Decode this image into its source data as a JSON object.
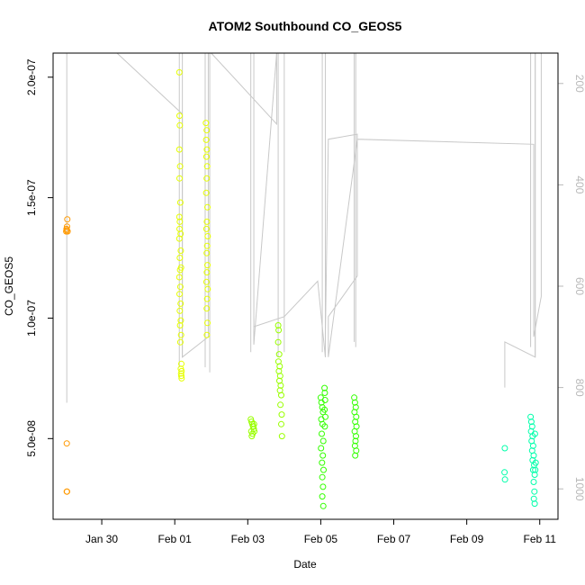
{
  "chart_data": {
    "type": "scatter",
    "title": "ATOM2 Southbound CO_GEOS5",
    "xlabel": "Date",
    "ylabel": "CO_GEOS5",
    "xlim": [
      "2017-01-28T16:00",
      "2017-02-11T12:00"
    ],
    "ylim": [
      1.65e-08,
      2.1e-07
    ],
    "y2lim": [
      1060,
      140
    ],
    "grid": false,
    "legend": "none",
    "x_ticks": [
      {
        "value": "2017-01-30",
        "label": "Jan 30"
      },
      {
        "value": "2017-02-01",
        "label": "Feb 01"
      },
      {
        "value": "2017-02-03",
        "label": "Feb 03"
      },
      {
        "value": "2017-02-05",
        "label": "Feb 05"
      },
      {
        "value": "2017-02-07",
        "label": "Feb 07"
      },
      {
        "value": "2017-02-09",
        "label": "Feb 09"
      },
      {
        "value": "2017-02-11",
        "label": "Feb 11"
      }
    ],
    "y_ticks": [
      {
        "value": 5e-08,
        "label": "5.0e-08"
      },
      {
        "value": 1e-07,
        "label": "1.0e-07"
      },
      {
        "value": 1.5e-07,
        "label": "1.5e-07"
      },
      {
        "value": 2e-07,
        "label": "2.0e-07"
      }
    ],
    "y2_ticks": [
      {
        "value": 200,
        "label": "200"
      },
      {
        "value": 400,
        "label": "400"
      },
      {
        "value": 600,
        "label": "600"
      },
      {
        "value": 800,
        "label": "800"
      },
      {
        "value": 1000,
        "label": "1000"
      }
    ],
    "pressure_color": "#c8c8c8",
    "pressure_profiles": [
      {
        "x": "2017-01-29T01:00",
        "p_top": 140,
        "p_bottom": 830
      },
      {
        "x": "2017-02-01T03:00",
        "p_top": 140,
        "p_bottom": 760
      },
      {
        "x": "2017-02-01T05:00",
        "p_top": 140,
        "p_bottom": 740
      },
      {
        "x": "2017-02-01T20:00",
        "p_top": 140,
        "p_bottom": 760
      },
      {
        "x": "2017-02-01T23:00",
        "p_top": 140,
        "p_bottom": 770
      },
      {
        "x": "2017-02-03T02:00",
        "p_top": 140,
        "p_bottom": 730
      },
      {
        "x": "2017-02-03T04:00",
        "p_top": 140,
        "p_bottom": 715
      },
      {
        "x": "2017-02-03T20:00",
        "p_top": 140,
        "p_bottom": 740
      },
      {
        "x": "2017-02-04T00:00",
        "p_top": 140,
        "p_bottom": 730
      },
      {
        "x": "2017-02-05T01:00",
        "p_top": 140,
        "p_bottom": 730
      },
      {
        "x": "2017-02-05T03:00",
        "p_top": 140,
        "p_bottom": 740
      },
      {
        "x": "2017-02-05T22:00",
        "p_top": 140,
        "p_bottom": 710
      },
      {
        "x": "2017-02-05T23:00",
        "p_top": 140,
        "p_bottom": 720
      },
      {
        "x": "2017-02-10T18:00",
        "p_top": 140,
        "p_bottom": 720
      },
      {
        "x": "2017-02-10T21:00",
        "p_top": 140,
        "p_bottom": 740
      }
    ],
    "transit_path": [
      [
        "2017-01-30T10:00",
        140
      ],
      [
        "2017-02-01T05:00",
        260
      ],
      [
        "2017-02-01T05:00",
        740
      ],
      [
        "2017-02-01T22:00",
        700
      ],
      [
        "2017-02-01T22:00",
        140
      ],
      [
        "2017-02-02T00:00",
        140
      ],
      [
        "2017-02-03T19:00",
        280
      ],
      [
        "2017-02-03T19:00",
        140
      ],
      [
        "2017-02-03T04:00",
        715
      ],
      [
        "2017-02-03T04:00",
        680
      ],
      [
        "2017-02-04T00:00",
        660
      ],
      [
        "2017-02-04T22:00",
        590
      ],
      [
        "2017-02-05T03:00",
        740
      ],
      [
        "2017-02-05T03:00",
        700
      ],
      [
        "2017-02-05T05:00",
        310
      ],
      [
        "2017-02-06T00:00",
        300
      ],
      [
        "2017-02-06T00:00",
        580
      ],
      [
        "2017-02-05T05:00",
        660
      ],
      [
        "2017-02-05T05:00",
        740
      ],
      [
        "2017-02-06T00:00",
        310
      ],
      [
        "2017-02-10T20:00",
        320
      ],
      [
        "2017-02-10T20:00",
        700
      ],
      [
        "2017-02-11T01:00",
        620
      ],
      [
        "2017-02-11T01:00",
        140
      ],
      [
        "2017-02-10T21:00",
        140
      ],
      [
        "2017-02-10T21:00",
        740
      ],
      [
        "2017-02-10T01:00",
        710
      ],
      [
        "2017-02-10T01:00",
        800
      ]
    ],
    "series": [
      {
        "color": "#ff9900",
        "points": [
          [
            "2017-01-29T00:40",
            1.36e-07
          ],
          [
            "2017-01-29T00:50",
            1.37e-07
          ],
          [
            "2017-01-29T01:00",
            1.365e-07
          ],
          [
            "2017-01-29T01:10",
            1.38e-07
          ],
          [
            "2017-01-29T01:20",
            1.41e-07
          ],
          [
            "2017-01-29T01:30",
            1.36e-07
          ],
          [
            "2017-01-29T01:00",
            4.8e-08
          ],
          [
            "2017-01-29T01:00",
            2.8e-08
          ],
          [
            "2017-01-29T01:10",
            2.8e-08
          ]
        ]
      },
      {
        "color": "#e6ff00",
        "points": [
          [
            "2017-02-01T03:00",
            2.02e-07
          ],
          [
            "2017-02-01T03:10",
            1.84e-07
          ],
          [
            "2017-02-01T03:20",
            1.8e-07
          ],
          [
            "2017-02-01T03:00",
            1.7e-07
          ],
          [
            "2017-02-01T03:30",
            1.63e-07
          ],
          [
            "2017-02-01T03:10",
            1.58e-07
          ],
          [
            "2017-02-01T03:40",
            1.48e-07
          ],
          [
            "2017-02-01T03:00",
            1.42e-07
          ],
          [
            "2017-02-01T03:20",
            1.4e-07
          ],
          [
            "2017-02-01T03:10",
            1.37e-07
          ],
          [
            "2017-02-01T03:50",
            1.35e-07
          ],
          [
            "2017-02-01T03:00",
            1.33e-07
          ],
          [
            "2017-02-01T04:00",
            1.28e-07
          ],
          [
            "2017-02-01T03:20",
            1.25e-07
          ],
          [
            "2017-02-01T04:10",
            1.21e-07
          ],
          [
            "2017-02-01T03:30",
            1.2e-07
          ],
          [
            "2017-02-01T03:00",
            1.17e-07
          ],
          [
            "2017-02-01T03:40",
            1.13e-07
          ],
          [
            "2017-02-01T03:10",
            1.1e-07
          ],
          [
            "2017-02-01T03:50",
            1.06e-07
          ],
          [
            "2017-02-01T03:20",
            1.03e-07
          ],
          [
            "2017-02-01T04:00",
            9.9e-08
          ],
          [
            "2017-02-01T03:30",
            9.7e-08
          ],
          [
            "2017-02-01T04:10",
            9.3e-08
          ],
          [
            "2017-02-01T03:40",
            9e-08
          ],
          [
            "2017-02-01T04:20",
            8.1e-08
          ],
          [
            "2017-02-01T04:00",
            7.9e-08
          ],
          [
            "2017-02-01T04:30",
            7.8e-08
          ],
          [
            "2017-02-01T04:10",
            7.7e-08
          ],
          [
            "2017-02-01T04:20",
            7.6e-08
          ],
          [
            "2017-02-01T04:30",
            7.5e-08
          ],
          [
            "2017-02-01T20:30",
            1.81e-07
          ],
          [
            "2017-02-01T21:00",
            1.78e-07
          ],
          [
            "2017-02-01T20:40",
            1.74e-07
          ],
          [
            "2017-02-01T21:10",
            1.7e-07
          ],
          [
            "2017-02-01T20:50",
            1.67e-07
          ],
          [
            "2017-02-01T21:20",
            1.63e-07
          ],
          [
            "2017-02-01T21:00",
            1.58e-07
          ],
          [
            "2017-02-01T20:40",
            1.52e-07
          ],
          [
            "2017-02-01T21:30",
            1.46e-07
          ],
          [
            "2017-02-01T21:10",
            1.4e-07
          ],
          [
            "2017-02-01T20:50",
            1.37e-07
          ],
          [
            "2017-02-01T21:40",
            1.34e-07
          ],
          [
            "2017-02-01T21:20",
            1.3e-07
          ],
          [
            "2017-02-01T21:00",
            1.27e-07
          ],
          [
            "2017-02-01T21:30",
            1.22e-07
          ],
          [
            "2017-02-01T21:10",
            1.19e-07
          ],
          [
            "2017-02-01T20:50",
            1.15e-07
          ],
          [
            "2017-02-01T21:40",
            1.12e-07
          ],
          [
            "2017-02-01T21:20",
            1.08e-07
          ],
          [
            "2017-02-01T21:00",
            1.04e-07
          ],
          [
            "2017-02-01T21:30",
            9.8e-08
          ],
          [
            "2017-02-01T21:10",
            9.3e-08
          ]
        ]
      },
      {
        "color": "#99ff00",
        "points": [
          [
            "2017-02-03T02:00",
            5.8e-08
          ],
          [
            "2017-02-03T02:30",
            5.7e-08
          ],
          [
            "2017-02-03T03:00",
            5.6e-08
          ],
          [
            "2017-02-03T03:30",
            5.5e-08
          ],
          [
            "2017-02-03T04:00",
            5.4e-08
          ],
          [
            "2017-02-03T02:20",
            5.3e-08
          ],
          [
            "2017-02-03T03:10",
            5.2e-08
          ],
          [
            "2017-02-03T02:40",
            5.1e-08
          ],
          [
            "2017-02-03T03:40",
            5.5e-08
          ],
          [
            "2017-02-03T04:10",
            5.6e-08
          ],
          [
            "2017-02-03T04:20",
            5.3e-08
          ],
          [
            "2017-02-03T20:00",
            9.7e-08
          ],
          [
            "2017-02-03T20:20",
            9.5e-08
          ],
          [
            "2017-02-03T20:00",
            9e-08
          ],
          [
            "2017-02-03T20:40",
            8.5e-08
          ],
          [
            "2017-02-03T20:10",
            8.2e-08
          ],
          [
            "2017-02-03T21:00",
            8e-08
          ],
          [
            "2017-02-03T20:30",
            7.8e-08
          ],
          [
            "2017-02-03T21:20",
            7.6e-08
          ],
          [
            "2017-02-03T20:50",
            7.4e-08
          ],
          [
            "2017-02-03T21:40",
            7.2e-08
          ],
          [
            "2017-02-03T21:10",
            7e-08
          ],
          [
            "2017-02-03T22:00",
            6.8e-08
          ],
          [
            "2017-02-03T21:30",
            6.4e-08
          ],
          [
            "2017-02-03T22:20",
            6e-08
          ],
          [
            "2017-02-03T22:00",
            5.6e-08
          ],
          [
            "2017-02-03T22:30",
            5.1e-08
          ]
        ]
      },
      {
        "color": "#33ff00",
        "points": [
          [
            "2017-02-05T00:00",
            6.7e-08
          ],
          [
            "2017-02-05T00:30",
            6.5e-08
          ],
          [
            "2017-02-05T01:00",
            6.3e-08
          ],
          [
            "2017-02-05T01:30",
            6.1e-08
          ],
          [
            "2017-02-05T00:20",
            5.8e-08
          ],
          [
            "2017-02-05T01:10",
            5.6e-08
          ],
          [
            "2017-02-05T00:40",
            5.2e-08
          ],
          [
            "2017-02-05T01:40",
            4.9e-08
          ],
          [
            "2017-02-05T00:10",
            4.6e-08
          ],
          [
            "2017-02-05T01:20",
            4.3e-08
          ],
          [
            "2017-02-05T00:50",
            4e-08
          ],
          [
            "2017-02-05T01:50",
            3.7e-08
          ],
          [
            "2017-02-05T01:00",
            3.4e-08
          ],
          [
            "2017-02-05T01:30",
            3e-08
          ],
          [
            "2017-02-05T01:00",
            2.6e-08
          ],
          [
            "2017-02-05T01:40",
            2.2e-08
          ],
          [
            "2017-02-05T02:30",
            7.1e-08
          ],
          [
            "2017-02-05T02:40",
            6.9e-08
          ],
          [
            "2017-02-05T02:50",
            6.6e-08
          ],
          [
            "2017-02-05T02:30",
            6.2e-08
          ],
          [
            "2017-02-05T03:00",
            5.9e-08
          ],
          [
            "2017-02-05T02:40",
            5.5e-08
          ],
          [
            "2017-02-05T22:00",
            6.7e-08
          ],
          [
            "2017-02-05T22:30",
            6.5e-08
          ],
          [
            "2017-02-05T23:00",
            6.3e-08
          ],
          [
            "2017-02-05T22:10",
            6.1e-08
          ],
          [
            "2017-02-05T23:20",
            5.9e-08
          ],
          [
            "2017-02-05T22:40",
            5.7e-08
          ],
          [
            "2017-02-05T23:30",
            5.5e-08
          ],
          [
            "2017-02-05T22:20",
            5.3e-08
          ],
          [
            "2017-02-05T23:10",
            5.1e-08
          ],
          [
            "2017-02-05T22:50",
            4.9e-08
          ],
          [
            "2017-02-05T22:30",
            4.7e-08
          ],
          [
            "2017-02-05T23:20",
            4.5e-08
          ],
          [
            "2017-02-05T22:40",
            4.3e-08
          ]
        ]
      },
      {
        "color": "#00ffaa",
        "points": [
          [
            "2017-02-10T01:00",
            4.6e-08
          ],
          [
            "2017-02-10T00:50",
            3.6e-08
          ],
          [
            "2017-02-10T01:10",
            3.3e-08
          ],
          [
            "2017-02-10T18:00",
            5.9e-08
          ],
          [
            "2017-02-10T18:30",
            5.7e-08
          ],
          [
            "2017-02-10T19:00",
            5.5e-08
          ],
          [
            "2017-02-10T18:20",
            5.3e-08
          ],
          [
            "2017-02-10T19:20",
            5.1e-08
          ],
          [
            "2017-02-10T18:40",
            4.9e-08
          ],
          [
            "2017-02-10T19:40",
            4.7e-08
          ],
          [
            "2017-02-10T19:00",
            4.5e-08
          ],
          [
            "2017-02-10T20:00",
            4.3e-08
          ],
          [
            "2017-02-10T19:20",
            4.1e-08
          ],
          [
            "2017-02-10T20:20",
            3.9e-08
          ],
          [
            "2017-02-10T19:40",
            3.7e-08
          ],
          [
            "2017-02-10T20:40",
            3.5e-08
          ],
          [
            "2017-02-10T20:00",
            3.2e-08
          ],
          [
            "2017-02-10T20:30",
            2.8e-08
          ],
          [
            "2017-02-10T20:10",
            2.5e-08
          ],
          [
            "2017-02-10T20:40",
            2.3e-08
          ],
          [
            "2017-02-10T21:00",
            3.7e-08
          ],
          [
            "2017-02-10T21:20",
            4e-08
          ],
          [
            "2017-02-10T20:50",
            5.2e-08
          ]
        ]
      }
    ]
  }
}
